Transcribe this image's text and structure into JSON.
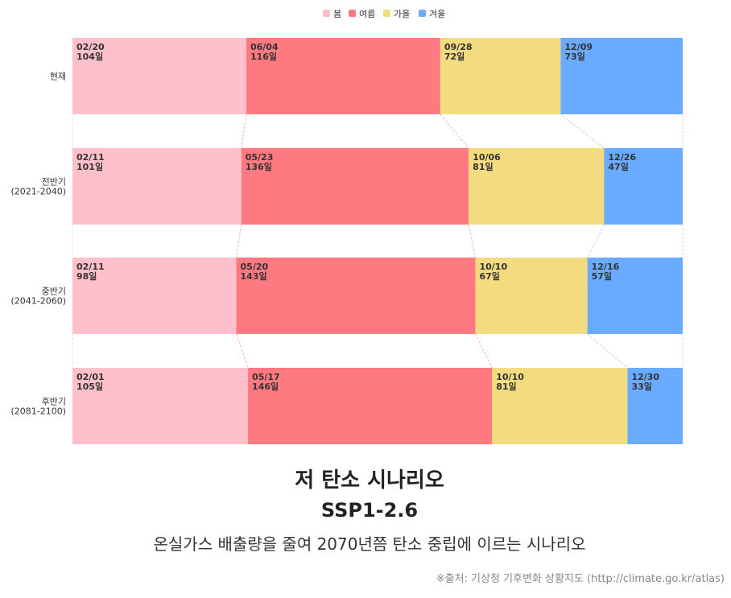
{
  "chart_data": {
    "type": "bar",
    "orientation": "horizontal",
    "stacked": true,
    "title": "저 탄소 시나리오",
    "subtitle": "SSP1-2.6",
    "description": "온실가스 배출량을 줄여 2070년쯤 탄소 중립에 이르는 시나리오",
    "source": "※출처: 기상청 기후변화 상황지도 (http://climate.go.kr/atlas)",
    "legend_position": "top",
    "categories": [
      "현재",
      "전반기\n(2021-2040)",
      "중반기\n(2041-2060)",
      "후반기\n(2081-2100)"
    ],
    "series": [
      {
        "name": "봄",
        "color": "#ffc0cb",
        "values": [
          104,
          101,
          98,
          105
        ],
        "start_dates": [
          "02/20",
          "02/11",
          "02/11",
          "02/01"
        ]
      },
      {
        "name": "여름",
        "color": "#ff7a80",
        "values": [
          116,
          136,
          143,
          146
        ],
        "start_dates": [
          "06/04",
          "05/23",
          "05/20",
          "05/17"
        ]
      },
      {
        "name": "가을",
        "color": "#f3dc80",
        "values": [
          72,
          81,
          67,
          81
        ],
        "start_dates": [
          "09/28",
          "10/06",
          "10/10",
          "10/10"
        ]
      },
      {
        "name": "겨울",
        "color": "#6aabff",
        "values": [
          73,
          47,
          57,
          33
        ],
        "start_dates": [
          "12/09",
          "12/26",
          "12/16",
          "12/30"
        ]
      }
    ],
    "value_suffix": "일",
    "grid": false
  }
}
